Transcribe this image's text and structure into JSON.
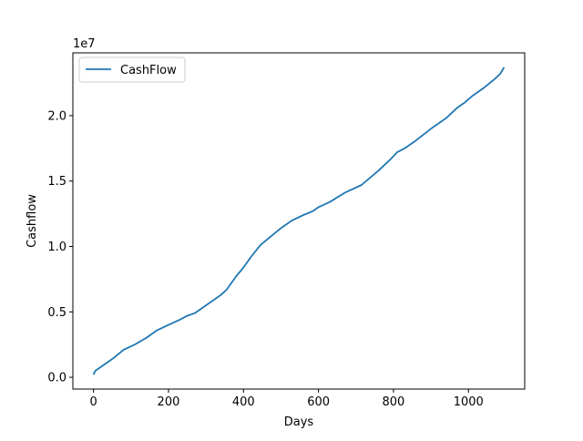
{
  "chart_data": {
    "type": "line",
    "xlabel": "Days",
    "ylabel": "Cashflow",
    "offset_label": "1e7",
    "xlim": [
      -55,
      1150
    ],
    "ylim": [
      -0.09,
      2.48
    ],
    "x_ticks": [
      0,
      200,
      400,
      600,
      800,
      1000
    ],
    "x_tick_labels": [
      "0",
      "200",
      "400",
      "600",
      "800",
      "1000"
    ],
    "y_ticks": [
      0.0,
      0.5,
      1.0,
      1.5,
      2.0
    ],
    "y_tick_labels": [
      "0.0",
      "0.5",
      "1.0",
      "1.5",
      "2.0"
    ],
    "grid": false,
    "legend": {
      "position": "top-left",
      "entries": [
        "CashFlow"
      ]
    },
    "series": [
      {
        "name": "CashFlow",
        "color": "#1f77b4",
        "x": [
          0,
          5,
          30,
          55,
          80,
          110,
          140,
          170,
          200,
          230,
          250,
          270,
          290,
          320,
          340,
          355,
          380,
          400,
          420,
          445,
          470,
          500,
          530,
          560,
          585,
          600,
          630,
          670,
          715,
          760,
          790,
          810,
          830,
          860,
          900,
          940,
          970,
          990,
          1010,
          1040,
          1070,
          1085,
          1095
        ],
        "y": [
          0.02,
          0.05,
          0.1,
          0.15,
          0.21,
          0.25,
          0.3,
          0.36,
          0.4,
          0.44,
          0.47,
          0.49,
          0.53,
          0.59,
          0.63,
          0.67,
          0.77,
          0.84,
          0.92,
          1.01,
          1.07,
          1.14,
          1.2,
          1.24,
          1.27,
          1.3,
          1.34,
          1.41,
          1.47,
          1.58,
          1.66,
          1.72,
          1.75,
          1.81,
          1.9,
          1.98,
          2.06,
          2.1,
          2.15,
          2.21,
          2.28,
          2.32,
          2.37
        ]
      }
    ]
  }
}
